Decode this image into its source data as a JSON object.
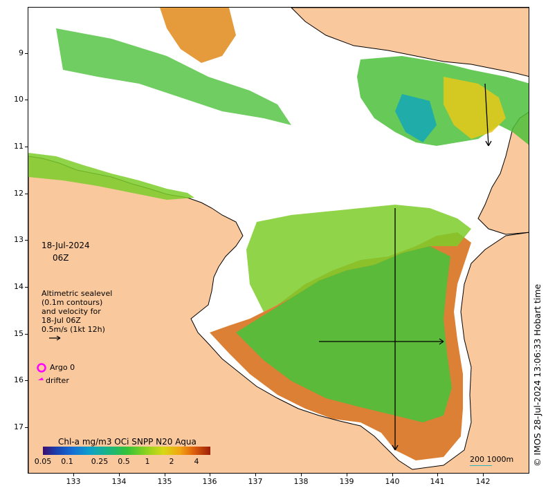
{
  "map": {
    "date": "18-Jul-2024",
    "time": "06Z",
    "legend_text": [
      "Altimetric sealevel",
      "(0.1m contours)",
      "and velocity for",
      "18-Jul 06Z",
      "0.5m/s (1kt 12h)"
    ],
    "argo_label": "Argo 0",
    "drifter_label": "drifter",
    "colorbar_title": "Chl-a mg/m3 OCi SNPP N20 Aqua",
    "colorbar_ticks": [
      "0.05",
      "0.1",
      "0.25",
      "0.5",
      "1",
      "2",
      "4"
    ],
    "scale_label": "200  1000m",
    "credit": "© IMOS 28-Jul-2024 13:06:33 Hobart time",
    "lat_ticks": [
      "9",
      "10",
      "11",
      "12",
      "13",
      "14",
      "15",
      "16",
      "17"
    ],
    "lon_ticks": [
      "133",
      "134",
      "135",
      "136",
      "137",
      "138",
      "139",
      "140",
      "141",
      "142"
    ],
    "colors": {
      "land": "#f9c89c",
      "sea": "#ffffff",
      "argo": "#ff00ff",
      "drifter": "#ff00ff"
    }
  }
}
